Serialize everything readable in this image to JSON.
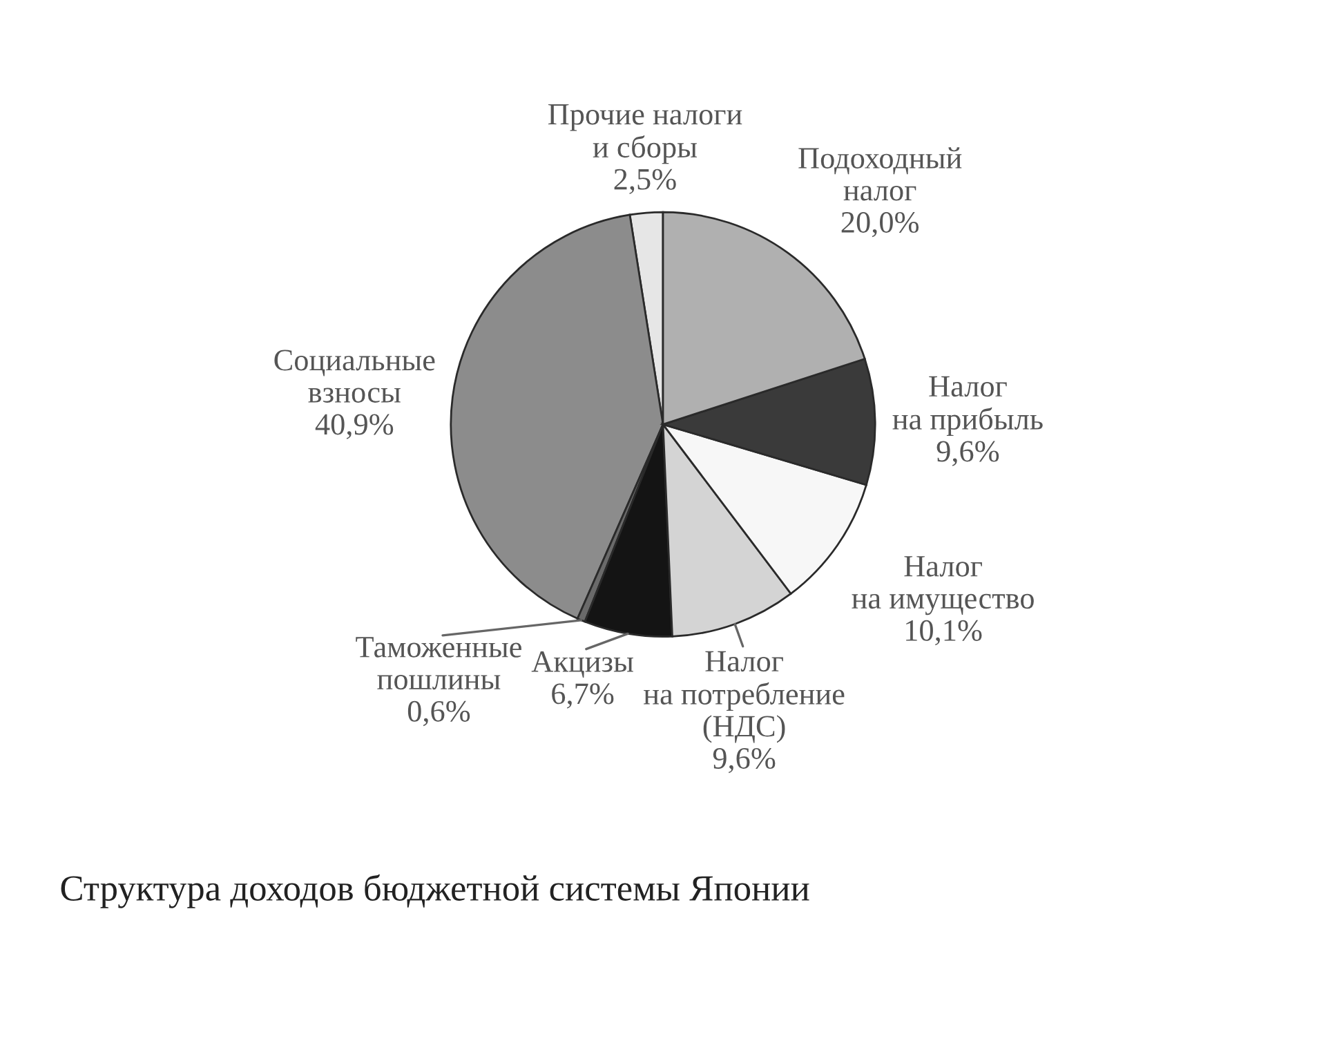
{
  "chart_data": {
    "type": "pie",
    "title": "Структура доходов бюджетной системы Японии",
    "categories": [
      "Прочие налоги\nи сборы",
      "Социальные\nвзносы",
      "Таможенные\nпошлины",
      "Акцизы",
      "Налог\nна потребление\n(НДС)",
      "Налог\nна имущество",
      "Налог\nна прибыль",
      "Подоходный\nналог"
    ],
    "values": [
      2.5,
      40.9,
      0.6,
      6.7,
      9.6,
      10.1,
      9.6,
      20.0
    ],
    "value_labels": [
      "2,5%",
      "40,9%",
      "0,6%",
      "6,7%",
      "9,6%",
      "10,1%",
      "9,6%",
      "20,0%"
    ],
    "colors": [
      "#e6e6e6",
      "#8c8c8c",
      "#6a6a6a",
      "#141414",
      "#d4d4d4",
      "#f7f7f7",
      "#3a3a3a",
      "#b0b0b0"
    ]
  }
}
